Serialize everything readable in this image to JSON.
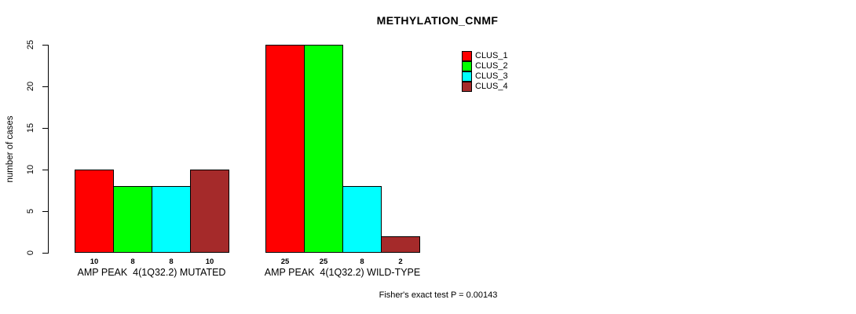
{
  "chart_data": {
    "type": "bar",
    "title": "METHYLATION_CNMF",
    "ylabel": "number of cases",
    "xlabel": "",
    "ylim": [
      0,
      25
    ],
    "yticks": [
      0,
      5,
      10,
      15,
      20,
      25
    ],
    "grid": false,
    "legend_position": "top-right",
    "categories": [
      "AMP PEAK  4(1Q32.2) MUTATED",
      "AMP PEAK  4(1Q32.2) WILD-TYPE"
    ],
    "series": [
      {
        "name": "CLUS_1",
        "color": "#ff0000",
        "values": [
          10,
          25
        ]
      },
      {
        "name": "CLUS_2",
        "color": "#00ff00",
        "values": [
          8,
          25
        ]
      },
      {
        "name": "CLUS_3",
        "color": "#00ffff",
        "values": [
          8,
          8
        ]
      },
      {
        "name": "CLUS_4",
        "color": "#a52a2a",
        "values": [
          10,
          2
        ]
      }
    ],
    "bar_value_labels": true,
    "annotation": "Fisher's exact test P = 0.00143"
  }
}
